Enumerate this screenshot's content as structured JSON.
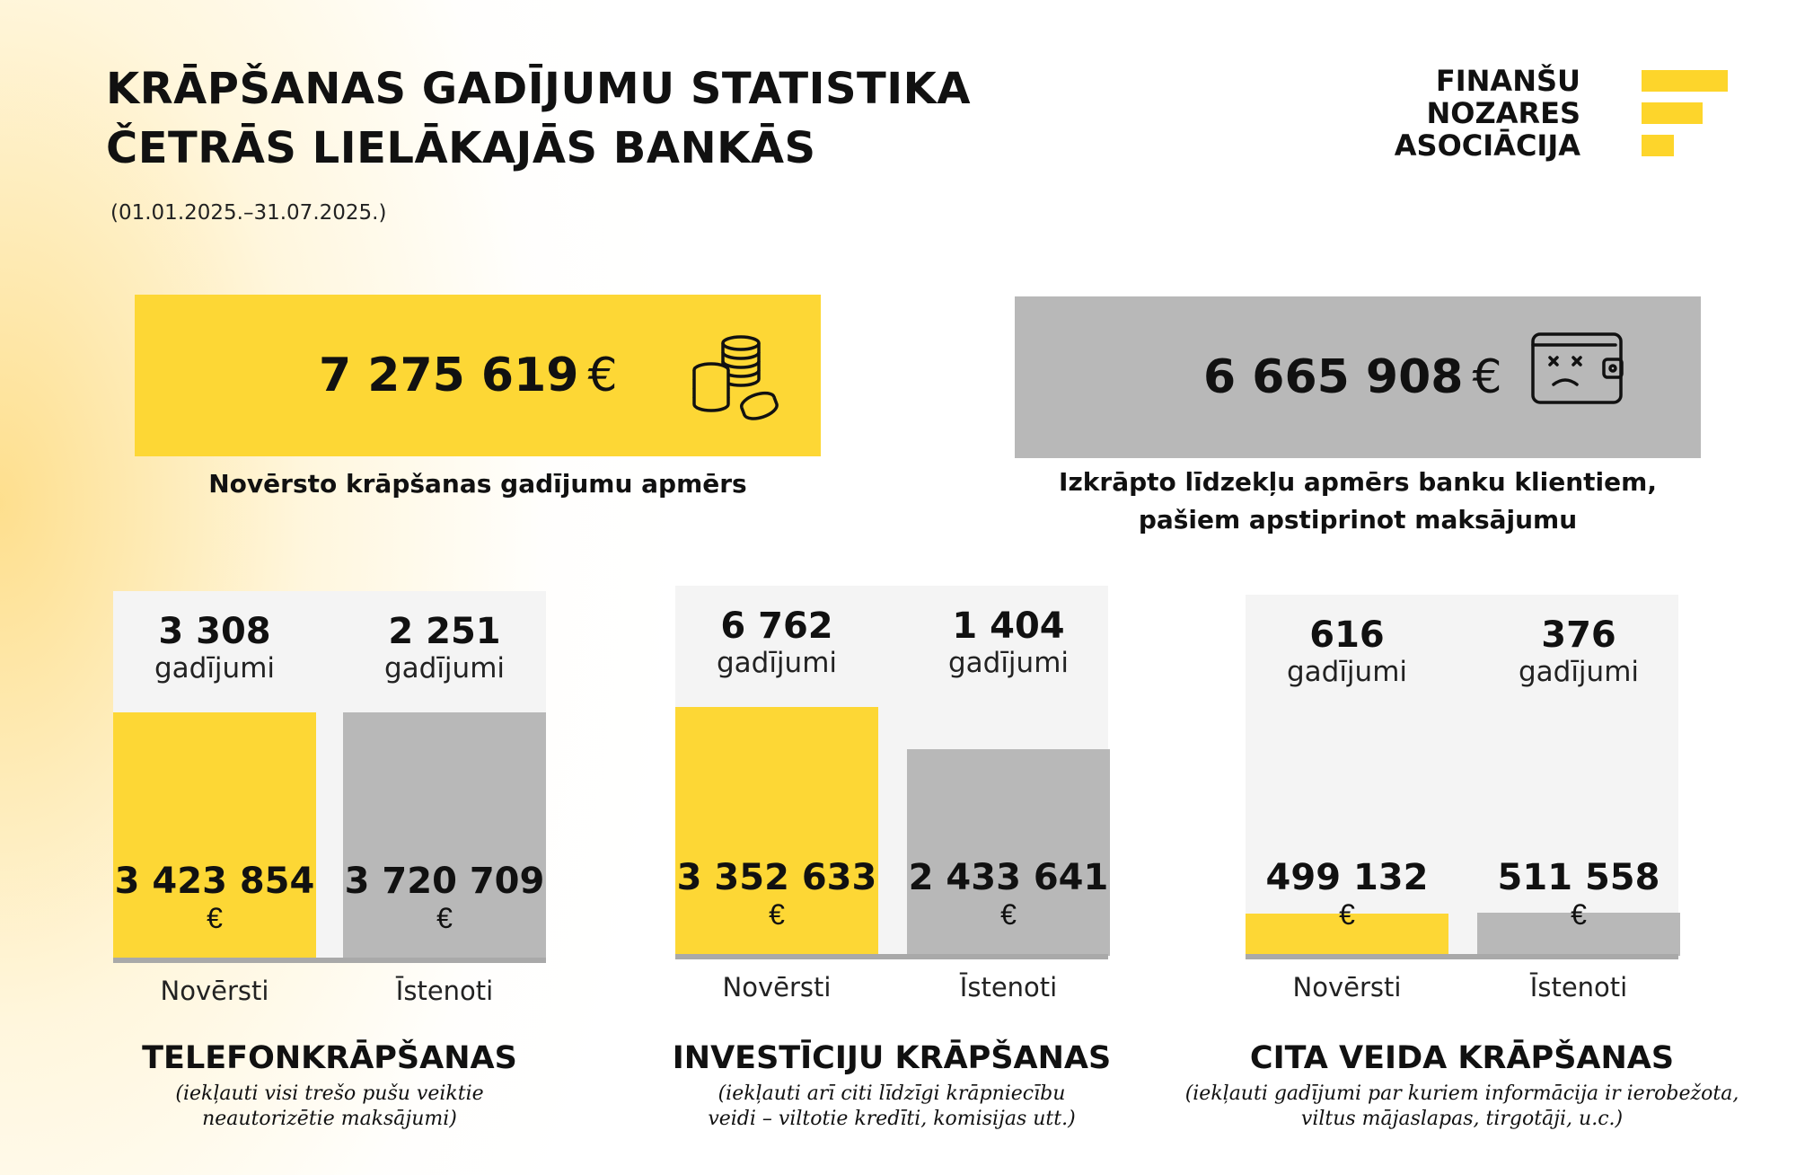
{
  "header": {
    "title_line1": "KRĀPŠANAS GADĪJUMU STATISTIKA",
    "title_line2": "ČETRĀS LIELĀKAJĀS BANKĀS",
    "period": "(01.01.2025.–31.07.2025.)"
  },
  "logo": {
    "line1": "FINANŠU",
    "line2": "NOZARES",
    "line3": "ASOCIĀCIJA"
  },
  "kpis": [
    {
      "value": "7 275 619",
      "currency": "€",
      "caption_lines": [
        "Novērsto krāpšanas gadījumu apmērs"
      ],
      "color": "#fdd735",
      "icon": "coins-icon"
    },
    {
      "value": "6 665 908",
      "currency": "€",
      "caption_lines": [
        "Izkrāpto līdzekļu apmērs banku klientiem,",
        "pašiem apstiprinot maksājumu"
      ],
      "color": "#b8b8b8",
      "icon": "empty-wallet-icon"
    }
  ],
  "colors": {
    "prevented": "#fdd735",
    "realized": "#b8b8b8",
    "panel": "#f4f4f4",
    "baseline": "#a9a9a9"
  },
  "chart_data": [
    {
      "type": "bar",
      "title": "TELEFONKRĀPŠANAS",
      "note_lines": [
        "(iekļauti visi trešo pušu veiktie",
        "neautorizētie maksājumi)"
      ],
      "categories": [
        "Novērsti",
        "Īstenoti"
      ],
      "values": [
        3423854,
        3720709
      ],
      "value_labels": [
        "3 423 854",
        "3 720 709"
      ],
      "currency": "€",
      "counts": [
        "3 308",
        "2 251"
      ],
      "count_unit": "gadījumi"
    },
    {
      "type": "bar",
      "title": "INVESTĪCIJU KRĀPŠANAS",
      "note_lines": [
        "(iekļauti arī citi līdzīgi krāpniecību",
        "veidi – viltotie kredīti, komisijas utt.)"
      ],
      "categories": [
        "Novērsti",
        "Īstenoti"
      ],
      "values": [
        3352633,
        2433641
      ],
      "value_labels": [
        "3 352 633",
        "2 433 641"
      ],
      "currency": "€",
      "counts": [
        "6 762",
        "1 404"
      ],
      "count_unit": "gadījumi"
    },
    {
      "type": "bar",
      "title": "CITA VEIDA KRĀPŠANAS",
      "note_lines": [
        "(iekļauti gadījumi par kuriem informācija ir ierobežota,",
        "viltus mājaslapas, tirgotāji,  u.c.)"
      ],
      "categories": [
        "Novērsti",
        "Īstenoti"
      ],
      "values": [
        499132,
        511558
      ],
      "value_labels": [
        "499 132",
        "511 558"
      ],
      "currency": "€",
      "counts": [
        "616",
        "376"
      ],
      "count_unit": "gadījumi"
    }
  ]
}
